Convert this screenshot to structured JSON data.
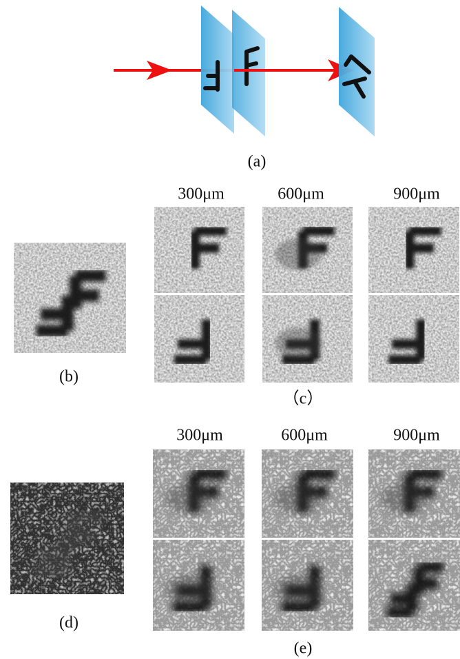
{
  "panels": {
    "a": {
      "label": "(a)"
    },
    "b": {
      "label": "(b)"
    },
    "c": {
      "label": "（c）",
      "distances": [
        "300μm",
        "600μm",
        "900μm"
      ]
    },
    "d": {
      "label": "(d)"
    },
    "e": {
      "label": "(e)",
      "distances": [
        "300μm",
        "600μm",
        "900μm"
      ]
    }
  }
}
